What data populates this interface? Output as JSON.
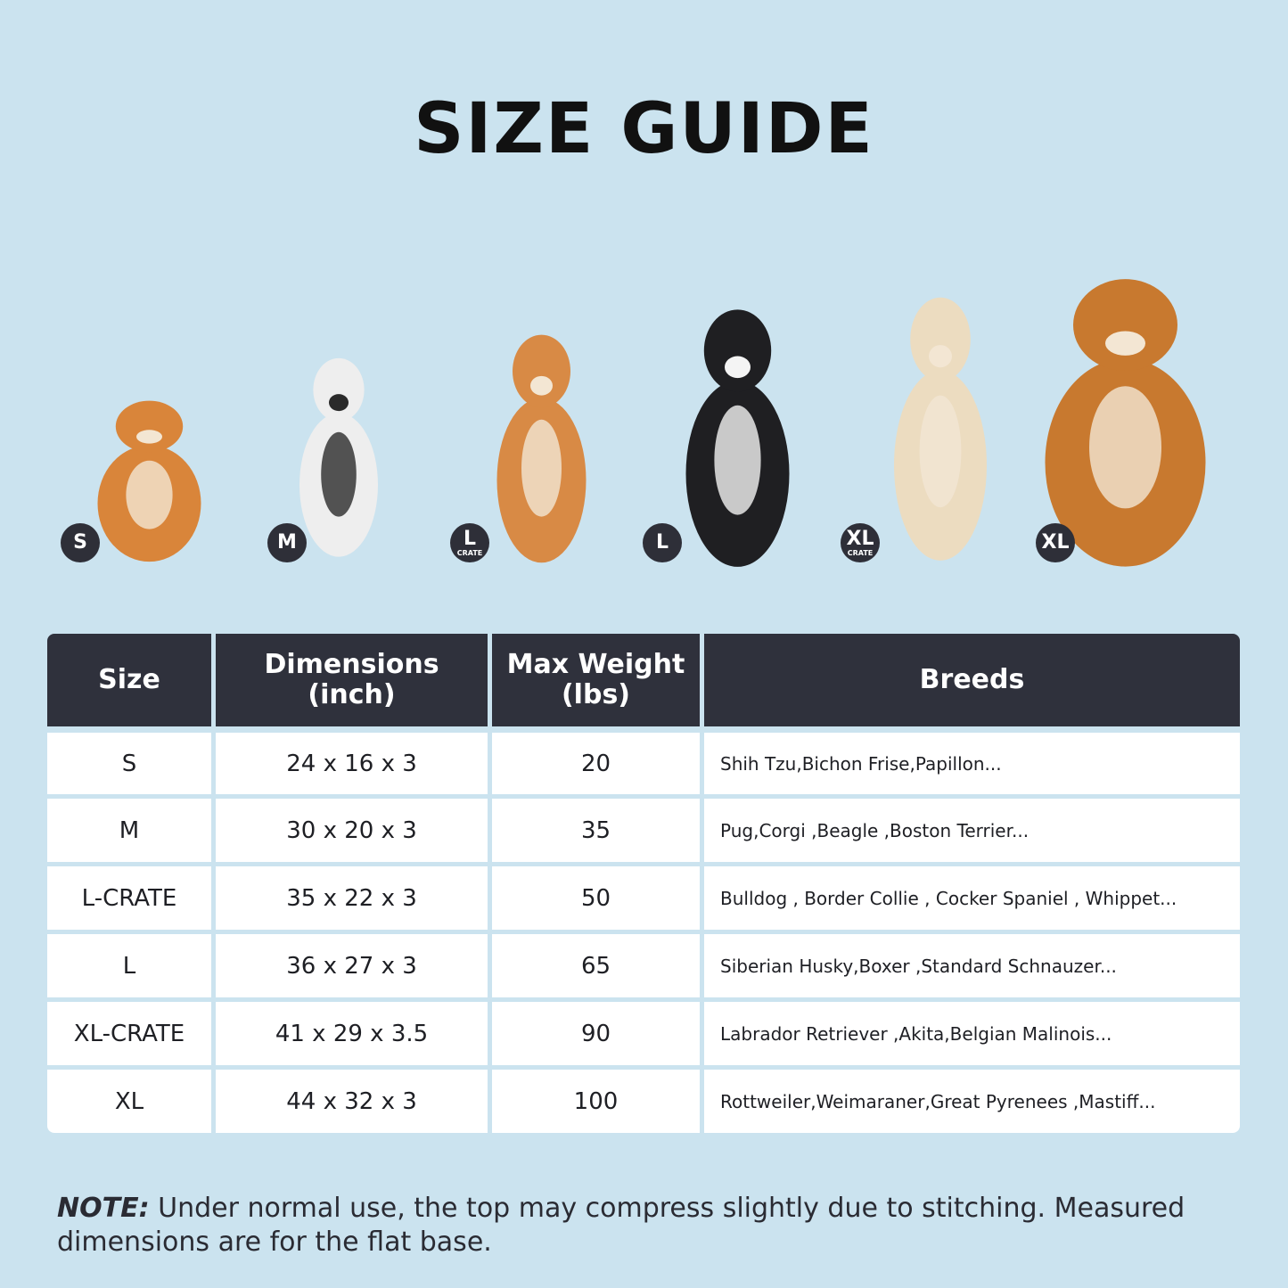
{
  "title": "SIZE GUIDE",
  "dogs": [
    {
      "badge": "S",
      "sub": "",
      "color": "#d9853a"
    },
    {
      "badge": "M",
      "sub": "",
      "color": "#eeeeee"
    },
    {
      "badge": "L",
      "sub": "CRATE",
      "color": "#d88a45"
    },
    {
      "badge": "L",
      "sub": "",
      "color": "#1f1f22"
    },
    {
      "badge": "XL",
      "sub": "CRATE",
      "color": "#ecdcc0"
    },
    {
      "badge": "XL",
      "sub": "",
      "color": "#c8792f"
    }
  ],
  "table": {
    "headers": [
      "Size",
      "Dimensions (inch)",
      "Max Weight (lbs)",
      "Breeds"
    ],
    "rows": [
      [
        "S",
        "24 x 16 x 3",
        "20",
        "Shih Tzu,Bichon Frise,Papillon..."
      ],
      [
        "M",
        "30 x 20 x 3",
        "35",
        "Pug,Corgi ,Beagle ,Boston Terrier..."
      ],
      [
        "L-CRATE",
        "35 x 22 x 3",
        "50",
        "Bulldog , Border Collie , Cocker Spaniel , Whippet..."
      ],
      [
        "L",
        "36 x 27 x 3",
        "65",
        "Siberian Husky,Boxer ,Standard Schnauzer..."
      ],
      [
        "XL-CRATE",
        "41 x 29 x 3.5",
        "90",
        "Labrador Retriever ,Akita,Belgian Malinois..."
      ],
      [
        "XL",
        "44 x 32 x 3",
        "100",
        "Rottweiler,Weimaraner,Great Pyrenees ,Mastiff..."
      ]
    ]
  },
  "note": {
    "label": "NOTE:",
    "text": " Under normal use, the top may compress slightly due to stitching. Measured dimensions are for the flat base."
  }
}
